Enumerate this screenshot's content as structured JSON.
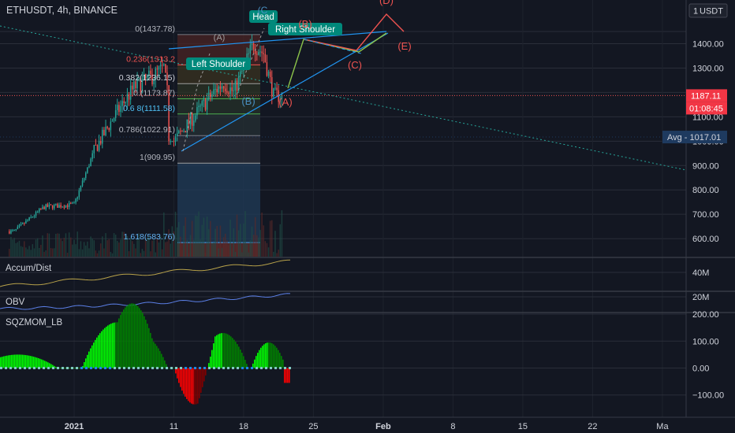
{
  "header": {
    "symbol_line": "ETHUSDT, 4h, BINANCE",
    "currency": "USDT"
  },
  "price_axis": {
    "ticks": [
      {
        "label": "1400.00",
        "value": 1400
      },
      {
        "label": "1300.00",
        "value": 1300
      },
      {
        "label": "1100.00",
        "value": 1100
      },
      {
        "label": "1000.00",
        "value": 1000
      },
      {
        "label": "900.00",
        "value": 900
      },
      {
        "label": "800.00",
        "value": 800
      },
      {
        "label": "700.00",
        "value": 700
      },
      {
        "label": "600.00",
        "value": 600
      }
    ],
    "last_price_label": "1187.11",
    "countdown_label": "01:08:45",
    "avg_label": "Avg - 1017.01",
    "avg_value": 1017.01,
    "last_price_value": 1187.11,
    "top_tick": "1"
  },
  "time_axis": {
    "ticks": [
      {
        "label": "2021",
        "day": 0
      },
      {
        "label": "11",
        "day": 10
      },
      {
        "label": "18",
        "day": 17
      },
      {
        "label": "25",
        "day": 24
      },
      {
        "label": "Feb",
        "day": 31
      },
      {
        "label": "8",
        "day": 38
      },
      {
        "label": "15",
        "day": 45
      },
      {
        "label": "22",
        "day": 52
      },
      {
        "label": "Ma",
        "day": 59
      }
    ]
  },
  "fib": {
    "levels": [
      {
        "label": "0(1437.78)",
        "value": 1437.78
      },
      {
        "label": "0.236(1313.2",
        "value": 1313.2
      },
      {
        "label": "0.382(1236.15)",
        "value": 1236.15
      },
      {
        "label": "0.5(1173.87)",
        "display": "0.(1173.87)",
        "value": 1173.87
      },
      {
        "label": "0.618(1111.58)",
        "display": "0.6 8(1111.58)",
        "value": 1111.58
      },
      {
        "label": "0.786(1022.91)",
        "value": 1022.91
      },
      {
        "label": "1(909.95)",
        "value": 909.95
      },
      {
        "label": "1.618(583.76)",
        "value": 583.76
      }
    ]
  },
  "annotations": {
    "head": "Head",
    "left_shoulder": "Left Shoulder",
    "right_shoulder": "Right Shoulder",
    "wave_a": "(A)",
    "wave_b_blue": "(B)",
    "wave_b_red": "(B)",
    "wave_c_red": "(C)",
    "wave_c_top": "(C",
    "wave_d": "(D)",
    "wave_e": "(E)",
    "wave_a_left": "(A)"
  },
  "indicators": {
    "accum": {
      "name": "Accum/Dist",
      "tick": "40M"
    },
    "obv": {
      "name": "OBV",
      "tick": "20M"
    },
    "sqz": {
      "name": "SQZMOM_LB",
      "ticks": [
        {
          "label": "200.00",
          "value": 200
        },
        {
          "label": "100.00",
          "value": 100
        },
        {
          "label": "0.00",
          "value": 0
        },
        {
          "label": "−100.00",
          "value": -100
        }
      ]
    }
  },
  "colors": {
    "background": "#131722",
    "grid": "#2a2e39",
    "up": "#26a69a",
    "down": "#ef5350",
    "sqz_strong_up": "#00ff00",
    "sqz_weak_up": "#008000",
    "sqz_strong_down": "#ff0000",
    "sqz_weak_down": "#800000",
    "label_teal": "#00897b",
    "blue_line": "#2196f3",
    "avg_badge": "#1e3a5f",
    "price_badge": "#f23645",
    "accum_line": "#b8a24a",
    "obv_line": "#5b7fe6"
  },
  "chart_data": {
    "type": "candlestick",
    "title": "ETHUSDT, 4h, BINANCE",
    "y_axis_unit": "USDT",
    "ylim": [
      500,
      1480
    ],
    "fib_range": [
      909.95,
      1437.78
    ],
    "approx_closes": [
      {
        "date": "2020-12-26",
        "close": 630
      },
      {
        "date": "2020-12-29",
        "close": 730
      },
      {
        "date": "2021-01-01",
        "close": 740
      },
      {
        "date": "2021-01-03",
        "close": 960
      },
      {
        "date": "2021-01-05",
        "close": 1100
      },
      {
        "date": "2021-01-07",
        "close": 1220
      },
      {
        "date": "2021-01-09",
        "close": 1270
      },
      {
        "date": "2021-01-10",
        "close": 1300
      },
      {
        "date": "2021-01-11",
        "close": 1000
      },
      {
        "date": "2021-01-13",
        "close": 1100
      },
      {
        "date": "2021-01-15",
        "close": 1200
      },
      {
        "date": "2021-01-16",
        "close": 1240
      },
      {
        "date": "2021-01-17",
        "close": 1200
      },
      {
        "date": "2021-01-19",
        "close": 1400
      },
      {
        "date": "2021-01-20",
        "close": 1360
      },
      {
        "date": "2021-01-21",
        "close": 1187
      }
    ],
    "sqzmom_ylim": [
      -150,
      220
    ]
  }
}
